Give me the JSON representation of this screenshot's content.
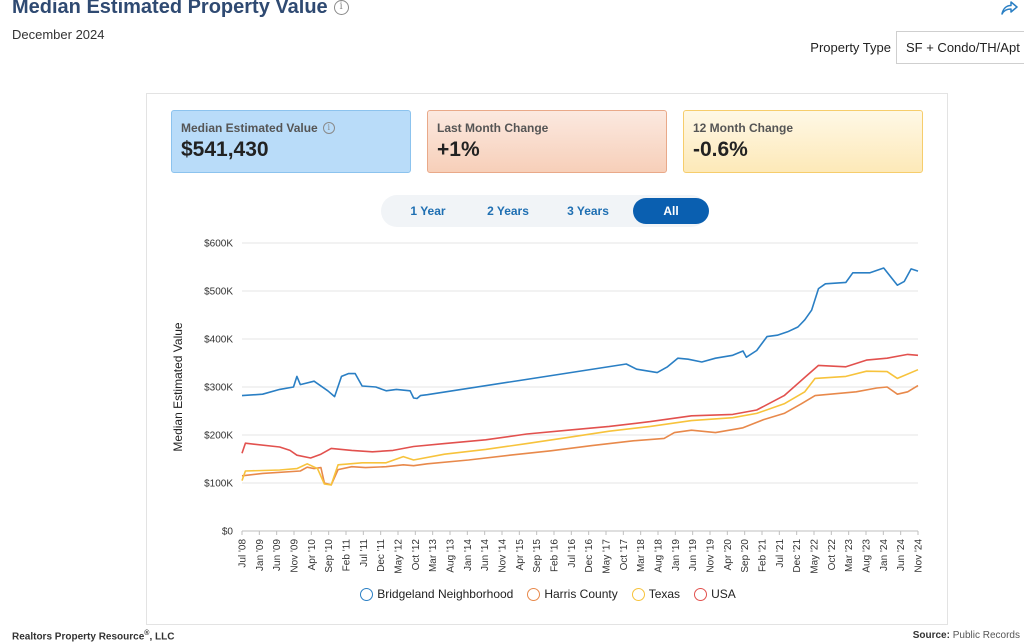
{
  "header": {
    "title": "Median Estimated Property Value",
    "info_icon": "info-icon",
    "date": "December 2024",
    "share_icon": "share-icon"
  },
  "property_type": {
    "label": "Property Type",
    "value": "SF + Condo/TH/Apt"
  },
  "stats": [
    {
      "label": "Median Estimated Value",
      "value": "$541,430",
      "has_info": true
    },
    {
      "label": "Last Month Change",
      "value": "+1%"
    },
    {
      "label": "12 Month Change",
      "value": "-0.6%"
    }
  ],
  "range_buttons": [
    {
      "label": "1 Year",
      "active": false
    },
    {
      "label": "2 Years",
      "active": false
    },
    {
      "label": "3 Years",
      "active": false
    },
    {
      "label": "All",
      "active": true
    }
  ],
  "colors": {
    "bridgeland": "#2a7fc4",
    "harris": "#e8894b",
    "texas": "#f7c33c",
    "usa": "#e2514e",
    "active_button": "#0a5fb0",
    "title": "#2f4a72"
  },
  "chart_data": {
    "type": "line",
    "ylabel": "Median Estimated Value",
    "xlabel": "",
    "ylim": [
      0,
      600000
    ],
    "y_ticks": [
      0,
      100000,
      200000,
      300000,
      400000,
      500000,
      600000
    ],
    "y_tick_labels": [
      "$0",
      "$100K",
      "$200K",
      "$300K",
      "$400K",
      "$500K",
      "$600K"
    ],
    "x_range": [
      "2008-07",
      "2024-12"
    ],
    "x_tick_labels": [
      "Jul '08",
      "Jan '09",
      "Jun '09",
      "Nov '09",
      "Apr '10",
      "Sep '10",
      "Feb '11",
      "Jul '11",
      "Dec '11",
      "May '12",
      "Oct '12",
      "Mar '13",
      "Aug '13",
      "Jan '14",
      "Jun '14",
      "Nov '14",
      "Apr '15",
      "Sep '15",
      "Feb '16",
      "Jul '16",
      "Dec '16",
      "May '17",
      "Oct '17",
      "Mar '18",
      "Aug '18",
      "Jan '19",
      "Jun '19",
      "Nov '19",
      "Apr '20",
      "Sep '20",
      "Feb '21",
      "Jul '21",
      "Dec '21",
      "May '22",
      "Oct '22",
      "Mar '23",
      "Aug '23",
      "Jan '24",
      "Jun '24",
      "Nov '24"
    ],
    "grid": "horizontal",
    "legend_position": "bottom",
    "series": [
      {
        "name": "Bridgeland Neighborhood",
        "color": "#2a7fc4",
        "points": [
          [
            "2008-07",
            282000
          ],
          [
            "2009-01",
            285000
          ],
          [
            "2009-06",
            295000
          ],
          [
            "2009-10",
            300000
          ],
          [
            "2009-11",
            322000
          ],
          [
            "2009-12",
            305000
          ],
          [
            "2010-04",
            312000
          ],
          [
            "2010-08",
            292000
          ],
          [
            "2010-10",
            280000
          ],
          [
            "2010-12",
            322000
          ],
          [
            "2011-02",
            328000
          ],
          [
            "2011-04",
            328000
          ],
          [
            "2011-06",
            302000
          ],
          [
            "2011-10",
            300000
          ],
          [
            "2012-01",
            292000
          ],
          [
            "2012-04",
            295000
          ],
          [
            "2012-08",
            292000
          ],
          [
            "2012-09",
            277000
          ],
          [
            "2012-10",
            276000
          ],
          [
            "2012-11",
            282000
          ],
          [
            "2013-01",
            284000
          ],
          [
            "2017-11",
            348000
          ],
          [
            "2018-02",
            337000
          ],
          [
            "2018-08",
            330000
          ],
          [
            "2018-11",
            342000
          ],
          [
            "2019-02",
            360000
          ],
          [
            "2019-05",
            358000
          ],
          [
            "2019-09",
            352000
          ],
          [
            "2020-01",
            360000
          ],
          [
            "2020-06",
            366000
          ],
          [
            "2020-09",
            375000
          ],
          [
            "2020-10",
            362000
          ],
          [
            "2021-01",
            376000
          ],
          [
            "2021-04",
            405000
          ],
          [
            "2021-07",
            408000
          ],
          [
            "2021-10",
            415000
          ],
          [
            "2022-01",
            425000
          ],
          [
            "2022-03",
            440000
          ],
          [
            "2022-05",
            460000
          ],
          [
            "2022-07",
            505000
          ],
          [
            "2022-09",
            515000
          ],
          [
            "2023-03",
            518000
          ],
          [
            "2023-05",
            538000
          ],
          [
            "2023-10",
            538000
          ],
          [
            "2024-02",
            548000
          ],
          [
            "2024-06",
            512000
          ],
          [
            "2024-08",
            520000
          ],
          [
            "2024-10",
            546000
          ],
          [
            "2024-12",
            541430
          ]
        ]
      },
      {
        "name": "Harris County",
        "color": "#e8894b",
        "points": [
          [
            "2008-07",
            115000
          ],
          [
            "2009-01",
            120000
          ],
          [
            "2009-12",
            125000
          ],
          [
            "2010-02",
            133000
          ],
          [
            "2010-04",
            130000
          ],
          [
            "2010-06",
            132000
          ],
          [
            "2010-07",
            100000
          ],
          [
            "2010-09",
            96000
          ],
          [
            "2010-11",
            128000
          ],
          [
            "2011-03",
            134000
          ],
          [
            "2011-07",
            132000
          ],
          [
            "2012-01",
            134000
          ],
          [
            "2012-06",
            138000
          ],
          [
            "2012-09",
            136000
          ],
          [
            "2013-01",
            140000
          ],
          [
            "2014-01",
            148000
          ],
          [
            "2015-01",
            158000
          ],
          [
            "2016-01",
            167000
          ],
          [
            "2017-01",
            178000
          ],
          [
            "2018-01",
            188000
          ],
          [
            "2018-10",
            193000
          ],
          [
            "2019-01",
            205000
          ],
          [
            "2019-06",
            210000
          ],
          [
            "2020-01",
            205000
          ],
          [
            "2020-09",
            215000
          ],
          [
            "2021-03",
            232000
          ],
          [
            "2021-09",
            245000
          ],
          [
            "2022-02",
            265000
          ],
          [
            "2022-06",
            282000
          ],
          [
            "2023-06",
            290000
          ],
          [
            "2023-12",
            298000
          ],
          [
            "2024-03",
            300000
          ],
          [
            "2024-06",
            285000
          ],
          [
            "2024-09",
            290000
          ],
          [
            "2024-12",
            303000
          ]
        ]
      },
      {
        "name": "Texas",
        "color": "#f7c33c",
        "points": [
          [
            "2008-07",
            105000
          ],
          [
            "2008-08",
            125000
          ],
          [
            "2009-06",
            127000
          ],
          [
            "2009-11",
            130000
          ],
          [
            "2010-02",
            140000
          ],
          [
            "2010-05",
            130000
          ],
          [
            "2010-07",
            98000
          ],
          [
            "2010-09",
            96000
          ],
          [
            "2010-11",
            138000
          ],
          [
            "2011-06",
            142000
          ],
          [
            "2012-01",
            142000
          ],
          [
            "2012-06",
            155000
          ],
          [
            "2012-09",
            148000
          ],
          [
            "2013-06",
            160000
          ],
          [
            "2014-06",
            170000
          ],
          [
            "2015-06",
            182000
          ],
          [
            "2016-06",
            195000
          ],
          [
            "2017-06",
            208000
          ],
          [
            "2018-06",
            218000
          ],
          [
            "2019-06",
            230000
          ],
          [
            "2020-06",
            236000
          ],
          [
            "2021-01",
            245000
          ],
          [
            "2021-09",
            265000
          ],
          [
            "2022-03",
            290000
          ],
          [
            "2022-06",
            318000
          ],
          [
            "2023-03",
            322000
          ],
          [
            "2023-09",
            333000
          ],
          [
            "2024-03",
            332000
          ],
          [
            "2024-06",
            318000
          ],
          [
            "2024-12",
            336000
          ]
        ]
      },
      {
        "name": "USA",
        "color": "#e2514e",
        "points": [
          [
            "2008-07",
            162000
          ],
          [
            "2008-08",
            183000
          ],
          [
            "2009-06",
            175000
          ],
          [
            "2009-09",
            168000
          ],
          [
            "2009-11",
            158000
          ],
          [
            "2010-03",
            152000
          ],
          [
            "2010-06",
            160000
          ],
          [
            "2010-09",
            172000
          ],
          [
            "2011-03",
            168000
          ],
          [
            "2011-09",
            165000
          ],
          [
            "2012-03",
            168000
          ],
          [
            "2012-09",
            176000
          ],
          [
            "2013-06",
            182000
          ],
          [
            "2014-06",
            190000
          ],
          [
            "2015-06",
            202000
          ],
          [
            "2016-06",
            210000
          ],
          [
            "2017-06",
            218000
          ],
          [
            "2018-06",
            228000
          ],
          [
            "2019-06",
            240000
          ],
          [
            "2020-06",
            243000
          ],
          [
            "2021-01",
            252000
          ],
          [
            "2021-09",
            282000
          ],
          [
            "2022-03",
            320000
          ],
          [
            "2022-07",
            345000
          ],
          [
            "2023-03",
            342000
          ],
          [
            "2023-09",
            356000
          ],
          [
            "2024-03",
            360000
          ],
          [
            "2024-09",
            368000
          ],
          [
            "2024-12",
            366000
          ]
        ]
      }
    ]
  },
  "footer": {
    "left": "Realtors Property Resource",
    "left_sup": "®",
    "left_suffix": ", LLC",
    "right_label": "Source:",
    "right_value": "Public Records"
  }
}
